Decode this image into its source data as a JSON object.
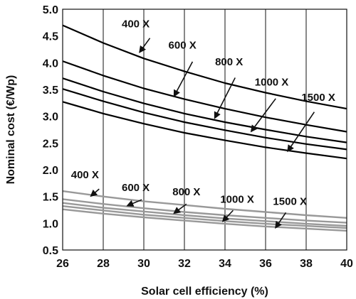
{
  "chart_data": {
    "type": "line",
    "title": "",
    "xlabel": "Solar cell efficiency (%)",
    "ylabel": "Nominal cost (€/Wp)",
    "xlim": [
      26,
      40
    ],
    "ylim": [
      0.5,
      5.0
    ],
    "xticks": [
      "26",
      "28",
      "30",
      "32",
      "34",
      "36",
      "38",
      "40"
    ],
    "yticks": [
      "0.5",
      "1.0",
      "1.5",
      "2.0",
      "2.5",
      "3.0",
      "3.5",
      "4.0",
      "4.5",
      "5.0"
    ],
    "grid": "vertical",
    "legend": "none",
    "colors": {
      "upper": "#000000",
      "lower": "#999999"
    },
    "series": [
      {
        "group": "upper",
        "x": [
          26,
          28,
          30,
          32,
          34,
          36,
          38,
          40
        ],
        "y": [
          4.7,
          4.37,
          4.08,
          3.84,
          3.62,
          3.44,
          3.28,
          3.14
        ]
      },
      {
        "group": "upper",
        "x": [
          26,
          28,
          30,
          32,
          34,
          36,
          38,
          40
        ],
        "y": [
          4.03,
          3.76,
          3.52,
          3.32,
          3.14,
          2.98,
          2.84,
          2.71
        ]
      },
      {
        "group": "upper",
        "x": [
          26,
          28,
          30,
          32,
          34,
          36,
          38,
          40
        ],
        "y": [
          3.71,
          3.46,
          3.24,
          3.05,
          2.89,
          2.75,
          2.62,
          2.51
        ]
      },
      {
        "group": "upper",
        "x": [
          26,
          28,
          30,
          32,
          34,
          36,
          38,
          40
        ],
        "y": [
          3.51,
          3.28,
          3.07,
          2.89,
          2.74,
          2.6,
          2.48,
          2.38
        ]
      },
      {
        "group": "upper",
        "x": [
          26,
          28,
          30,
          32,
          34,
          36,
          38,
          40
        ],
        "y": [
          3.27,
          3.05,
          2.86,
          2.69,
          2.55,
          2.42,
          2.31,
          2.21
        ]
      },
      {
        "group": "lower",
        "x": [
          26,
          28,
          30,
          32,
          34,
          36,
          38,
          40
        ],
        "y": [
          1.6,
          1.5,
          1.41,
          1.34,
          1.27,
          1.21,
          1.15,
          1.1
        ]
      },
      {
        "group": "lower",
        "x": [
          26,
          28,
          30,
          32,
          34,
          36,
          38,
          40
        ],
        "y": [
          1.45,
          1.36,
          1.28,
          1.21,
          1.15,
          1.1,
          1.05,
          1.01
        ]
      },
      {
        "group": "lower",
        "x": [
          26,
          28,
          30,
          32,
          34,
          36,
          38,
          40
        ],
        "y": [
          1.38,
          1.29,
          1.22,
          1.15,
          1.09,
          1.04,
          0.99,
          0.95
        ]
      },
      {
        "group": "lower",
        "x": [
          26,
          28,
          30,
          32,
          34,
          36,
          38,
          40
        ],
        "y": [
          1.32,
          1.24,
          1.16,
          1.1,
          1.04,
          0.99,
          0.95,
          0.91
        ]
      },
      {
        "group": "lower",
        "x": [
          26,
          28,
          30,
          32,
          34,
          36,
          38,
          40
        ],
        "y": [
          1.26,
          1.18,
          1.11,
          1.05,
          0.99,
          0.94,
          0.9,
          0.86
        ]
      }
    ],
    "annotations": [
      {
        "text": "400 X",
        "label_x": 29.6,
        "label_y": 4.66,
        "arrow_from": [
          30.3,
          4.46
        ],
        "arrow_to": [
          29.8,
          4.2
        ]
      },
      {
        "text": "600 X",
        "label_x": 31.9,
        "label_y": 4.26,
        "arrow_from": [
          32.4,
          4.02
        ],
        "arrow_to": [
          31.5,
          3.38
        ]
      },
      {
        "text": "800 X",
        "label_x": 34.2,
        "label_y": 3.95,
        "arrow_from": [
          34.5,
          3.72
        ],
        "arrow_to": [
          33.5,
          2.97
        ]
      },
      {
        "text": "1000 X",
        "label_x": 36.3,
        "label_y": 3.57,
        "arrow_from": [
          36.5,
          3.33
        ],
        "arrow_to": [
          35.3,
          2.72
        ]
      },
      {
        "text": "1500 X",
        "label_x": 38.6,
        "label_y": 3.29,
        "arrow_from": [
          38.4,
          3.08
        ],
        "arrow_to": [
          37.1,
          2.35
        ]
      },
      {
        "text": "400 X",
        "label_x": 27.1,
        "label_y": 1.84,
        "arrow_from": [
          27.8,
          1.64
        ],
        "arrow_to": [
          27.4,
          1.51
        ]
      },
      {
        "text": "600 X",
        "label_x": 29.6,
        "label_y": 1.6,
        "arrow_from": [
          29.9,
          1.44
        ],
        "arrow_to": [
          29.2,
          1.33
        ]
      },
      {
        "text": "800 X",
        "label_x": 32.1,
        "label_y": 1.52,
        "arrow_from": [
          32.1,
          1.36
        ],
        "arrow_to": [
          31.5,
          1.19
        ]
      },
      {
        "text": "1000 X",
        "label_x": 34.6,
        "label_y": 1.38,
        "arrow_from": [
          34.4,
          1.24
        ],
        "arrow_to": [
          33.9,
          1.04
        ]
      },
      {
        "text": "1500 X",
        "label_x": 37.2,
        "label_y": 1.34,
        "arrow_from": [
          37.0,
          1.2
        ],
        "arrow_to": [
          36.5,
          0.92
        ]
      }
    ]
  }
}
